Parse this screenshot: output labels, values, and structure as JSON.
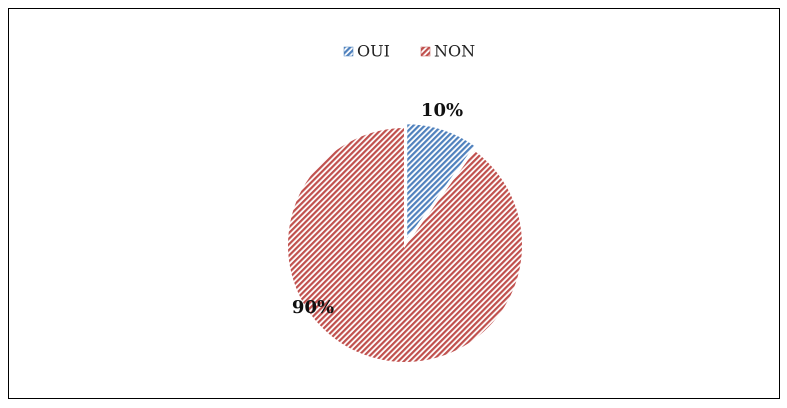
{
  "chart_data": {
    "type": "pie",
    "categories": [
      "OUI",
      "NON"
    ],
    "values": [
      10,
      90
    ],
    "value_labels": [
      "10%",
      "90%"
    ],
    "colors": [
      "#4f81bd",
      "#c0504d"
    ],
    "legend": "top"
  }
}
